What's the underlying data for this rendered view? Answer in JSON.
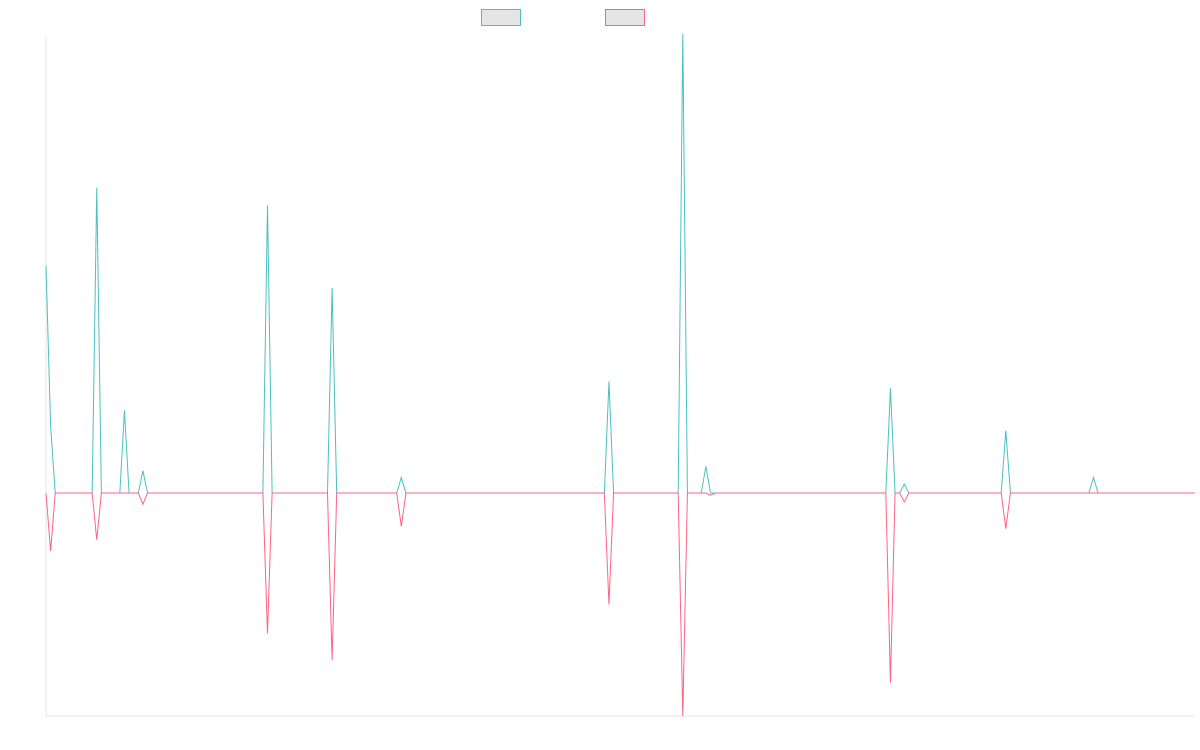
{
  "chart_data": {
    "type": "line",
    "title": "",
    "xlabel": "",
    "ylabel": "",
    "legend_position": "top-center",
    "grid": false,
    "x_count": 250,
    "ylim": [
      -1.0,
      2.05
    ],
    "series": [
      {
        "color": "#4bc0c0",
        "fill": "#e5e5e5",
        "points": [
          [
            0,
            1.02
          ],
          [
            1,
            0.3
          ],
          [
            2,
            0
          ],
          [
            10,
            0
          ],
          [
            11,
            1.37
          ],
          [
            12,
            0
          ],
          [
            16,
            0
          ],
          [
            17,
            0.37
          ],
          [
            18,
            0
          ],
          [
            20,
            0
          ],
          [
            21,
            0.1
          ],
          [
            22,
            0
          ],
          [
            47,
            0
          ],
          [
            48,
            1.29
          ],
          [
            49,
            0
          ],
          [
            61,
            0
          ],
          [
            62,
            0.92
          ],
          [
            63,
            0
          ],
          [
            76,
            0
          ],
          [
            77,
            0.07
          ],
          [
            78,
            0
          ],
          [
            121,
            0
          ],
          [
            122,
            0.5
          ],
          [
            123,
            0
          ],
          [
            137,
            0
          ],
          [
            138,
            2.06
          ],
          [
            139,
            0
          ],
          [
            142,
            0
          ],
          [
            143,
            0.12
          ],
          [
            144,
            0
          ],
          [
            182,
            0
          ],
          [
            183,
            0.47
          ],
          [
            184,
            0
          ],
          [
            185,
            0
          ],
          [
            186,
            0.04
          ],
          [
            187,
            0
          ],
          [
            207,
            0
          ],
          [
            208,
            0.28
          ],
          [
            209,
            0
          ],
          [
            226,
            0
          ],
          [
            227,
            0.07
          ],
          [
            228,
            0
          ],
          [
            249,
            0
          ]
        ]
      },
      {
        "color": "#ff6384",
        "fill": "#e5e5e5",
        "points": [
          [
            0,
            0
          ],
          [
            1,
            -0.26
          ],
          [
            2,
            0
          ],
          [
            10,
            0
          ],
          [
            11,
            -0.21
          ],
          [
            12,
            0
          ],
          [
            20,
            0
          ],
          [
            21,
            -0.05
          ],
          [
            22,
            0
          ],
          [
            47,
            0
          ],
          [
            48,
            -0.63
          ],
          [
            49,
            0
          ],
          [
            61,
            0
          ],
          [
            62,
            -0.75
          ],
          [
            63,
            0
          ],
          [
            76,
            0
          ],
          [
            77,
            -0.15
          ],
          [
            78,
            0
          ],
          [
            121,
            0
          ],
          [
            122,
            -0.5
          ],
          [
            123,
            0
          ],
          [
            137,
            0
          ],
          [
            138,
            -1.0
          ],
          [
            139,
            0
          ],
          [
            143,
            0
          ],
          [
            144,
            -0.01
          ],
          [
            145,
            0
          ],
          [
            182,
            0
          ],
          [
            183,
            -0.85
          ],
          [
            184,
            0
          ],
          [
            185,
            0
          ],
          [
            186,
            -0.04
          ],
          [
            187,
            0
          ],
          [
            207,
            0
          ],
          [
            208,
            -0.16
          ],
          [
            209,
            0
          ],
          [
            249,
            0
          ]
        ]
      }
    ]
  }
}
